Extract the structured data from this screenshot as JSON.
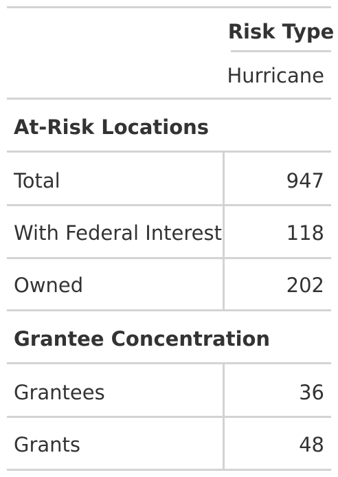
{
  "header": {
    "spanner_label": "Risk Type",
    "column_label": "Hurricane"
  },
  "groups": [
    {
      "title": "At-Risk Locations",
      "rows": [
        {
          "label": "Total",
          "value": "947"
        },
        {
          "label": "With Federal Interest",
          "value": "118"
        },
        {
          "label": "Owned",
          "value": "202"
        }
      ]
    },
    {
      "title": "Grantee Concentration",
      "rows": [
        {
          "label": "Grantees",
          "value": "36"
        },
        {
          "label": "Grants",
          "value": "48"
        }
      ]
    }
  ],
  "colors": {
    "text": "#333333",
    "rule": "#d3d3d3",
    "background": "#ffffff"
  }
}
